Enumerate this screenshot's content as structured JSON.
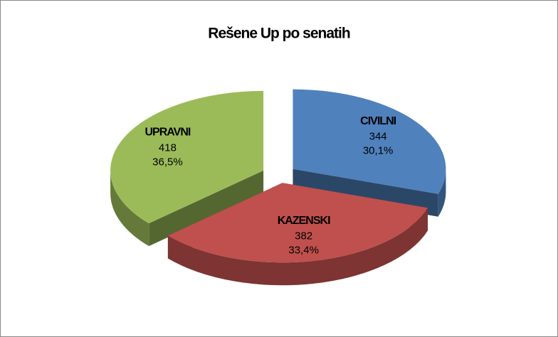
{
  "chart_data": {
    "type": "pie3d",
    "title": "Rešene Up po senatih",
    "categories": [
      "CIVILNI",
      "KAZENSKI",
      "UPRAVNI"
    ],
    "values": [
      344,
      382,
      418
    ],
    "percentages": [
      30.1,
      33.4,
      36.5
    ],
    "percentage_labels": [
      "30,1%",
      "33,4%",
      "36,5%"
    ],
    "colors": [
      "#4f81bd",
      "#c0504d",
      "#9bbb59"
    ]
  }
}
